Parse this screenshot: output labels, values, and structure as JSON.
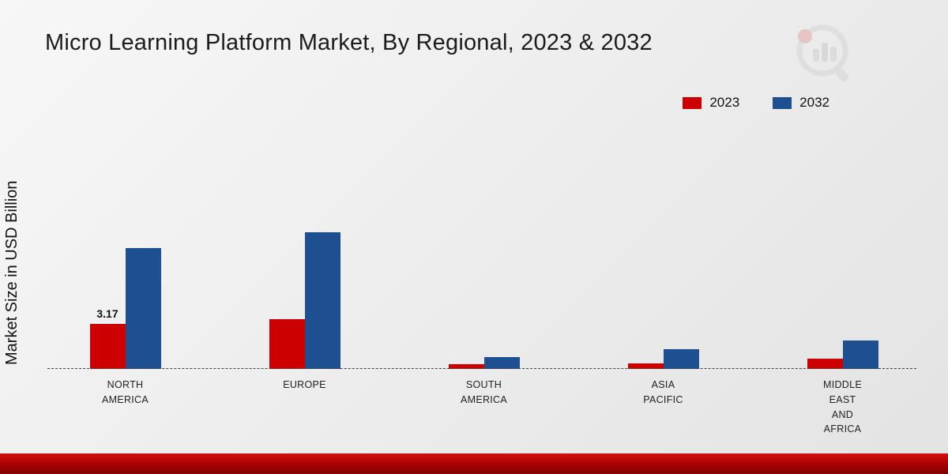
{
  "title": "Micro Learning Platform Market, By Regional, 2023 & 2032",
  "ylabel": "Market Size in USD Billion",
  "legend": {
    "items": [
      {
        "label": "2023",
        "color": "#cc0000"
      },
      {
        "label": "2032",
        "color": "#1d4f91"
      }
    ]
  },
  "chart_data": {
    "type": "bar",
    "title": "Micro Learning Platform Market, By Regional, 2023 & 2032",
    "xlabel": "",
    "ylabel": "Market Size in USD Billion",
    "categories": [
      "North America",
      "Europe",
      "South America",
      "Asia Pacific",
      "Middle East and Africa"
    ],
    "category_label_lines": [
      [
        "NORTH",
        "AMERICA"
      ],
      [
        "EUROPE"
      ],
      [
        "SOUTH",
        "AMERICA"
      ],
      [
        "ASIA",
        "PACIFIC"
      ],
      [
        "MIDDLE",
        "EAST",
        "AND",
        "AFRICA"
      ]
    ],
    "series": [
      {
        "name": "2023",
        "color": "#cc0000",
        "values": [
          3.17,
          3.5,
          0.35,
          0.4,
          0.7
        ]
      },
      {
        "name": "2032",
        "color": "#1d4f91",
        "values": [
          8.5,
          9.6,
          0.85,
          1.4,
          2.0
        ]
      }
    ],
    "data_labels": [
      {
        "series_index": 0,
        "category_index": 0,
        "text": "3.17"
      }
    ],
    "ylim": [
      0,
      10
    ],
    "grid": false,
    "baseline": "dashed",
    "legend_position": "top-right"
  }
}
